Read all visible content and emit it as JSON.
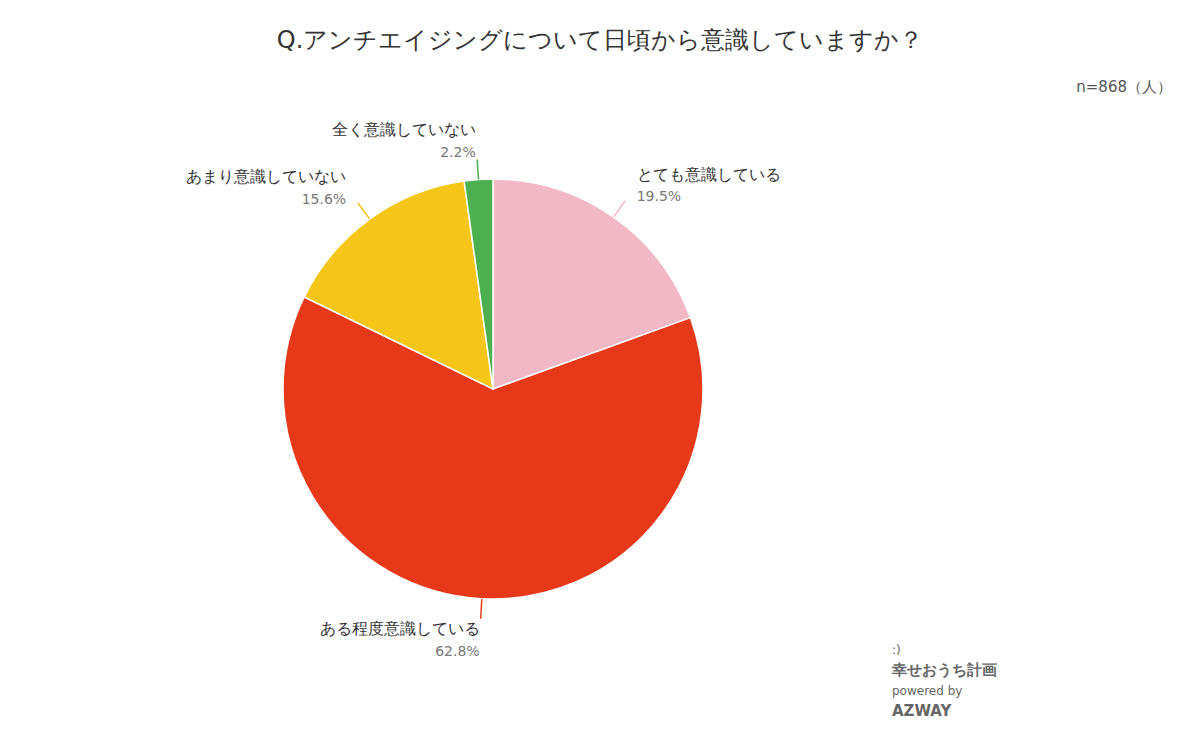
{
  "chart_data": {
    "type": "pie",
    "title": "Q.アンチエイジングについて日頃から意識していますか？",
    "categories": [
      "とても意識している",
      "ある程度意識している",
      "あまり意識していない",
      "全く意識していない"
    ],
    "values": [
      19.5,
      62.8,
      15.6,
      2.2
    ],
    "value_labels": [
      "19.5%",
      "62.8%",
      "15.6%",
      "2.2%"
    ],
    "colors": [
      "#F2B8C6",
      "#E8381A",
      "#F5C518",
      "#4CAF50"
    ],
    "data_labels": true,
    "annotations": [
      "n=868（人）",
      "幸せおうち計画",
      "powered by",
      "AZWAY",
      ":)"
    ]
  }
}
